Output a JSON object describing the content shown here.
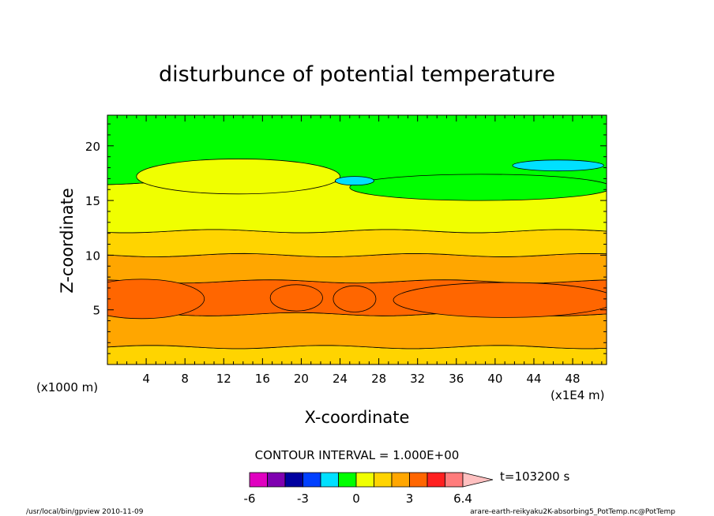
{
  "chart_data": {
    "type": "heatmap",
    "title": "disturbunce of potential temperature",
    "xlabel": "X-coordinate",
    "ylabel": "Z-coordinate",
    "x_unit": "(x1E4 m)",
    "y_unit": "(x1000 m)",
    "xlim": [
      0,
      51.5
    ],
    "ylim": [
      0,
      22.8
    ],
    "x_ticks": [
      4,
      8,
      12,
      16,
      20,
      24,
      28,
      32,
      36,
      40,
      44,
      48
    ],
    "y_ticks": [
      5,
      10,
      15,
      20
    ],
    "contour_interval": "CONTOUR INTERVAL = 1.000E+00",
    "time_label": "t=103200 s",
    "colorbar": {
      "colors": [
        "#e000c0",
        "#7f00b0",
        "#0000a0",
        "#0040ff",
        "#00e0ff",
        "#00ff00",
        "#f0ff00",
        "#ffd400",
        "#ffa600",
        "#ff6600",
        "#ff2020",
        "#ff7c7c",
        "#ffc0c0"
      ],
      "tick_labels": [
        "-6",
        "-3",
        "0",
        "3",
        "6.4"
      ]
    },
    "bands": [
      {
        "level": "1..2",
        "color": "#ffd400",
        "z_bottom": 0,
        "z_top": 1.6
      },
      {
        "level": "2..3",
        "color": "#ffa600",
        "z_bottom": 1.6,
        "z_top": 4.6
      },
      {
        "level": "3..4",
        "color": "#ff6600",
        "z_bottom": 4.6,
        "z_top": 7.6
      },
      {
        "level": "2..3",
        "color": "#ffa600",
        "z_bottom": 7.6,
        "z_top": 10.0
      },
      {
        "level": "1..2",
        "color": "#ffd400",
        "z_bottom": 10.0,
        "z_top": 12.2
      },
      {
        "level": "0..1",
        "color": "#f0ff00",
        "z_bottom": 12.2,
        "z_top": 16.6
      },
      {
        "level": "-1..0",
        "color": "#00ff00",
        "z_bottom": 16.6,
        "z_top": 22.8
      }
    ],
    "footer_left": "/usr/local/bin/gpview  2010-11-09",
    "footer_right": "arare-earth-reikyaku2K-absorbing5_PotTemp.nc@PotTemp"
  }
}
